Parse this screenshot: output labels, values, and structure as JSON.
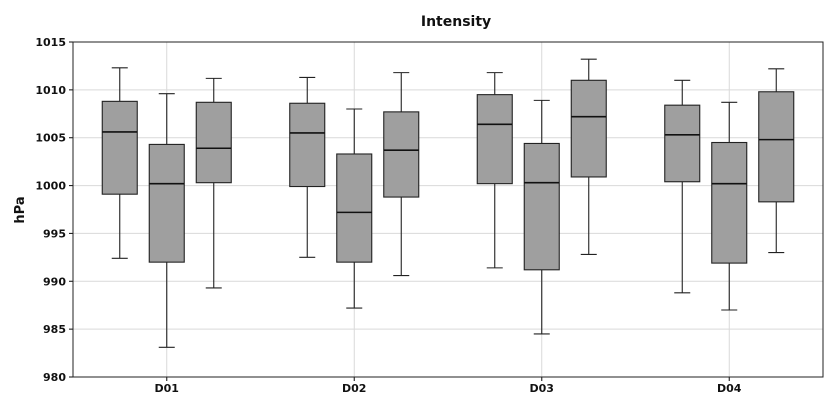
{
  "chart_data": {
    "type": "boxplot",
    "title": "Intensity",
    "ylabel": "hPa",
    "xlabel": "",
    "ylim": [
      980,
      1015
    ],
    "yticks": [
      980,
      985,
      990,
      995,
      1000,
      1005,
      1010,
      1015
    ],
    "categories": [
      "D01",
      "D02",
      "D03",
      "D04"
    ],
    "grid": true,
    "series": [
      {
        "values": [
          {
            "min": 992.4,
            "q1": 999.1,
            "median": 1005.6,
            "q3": 1008.8,
            "max": 1012.3
          },
          {
            "min": 992.5,
            "q1": 999.9,
            "median": 1005.5,
            "q3": 1008.6,
            "max": 1011.3
          },
          {
            "min": 991.4,
            "q1": 1000.2,
            "median": 1006.4,
            "q3": 1009.5,
            "max": 1011.8
          },
          {
            "min": 988.8,
            "q1": 1000.4,
            "median": 1005.3,
            "q3": 1008.4,
            "max": 1011.0
          }
        ]
      },
      {
        "values": [
          {
            "min": 983.1,
            "q1": 992.0,
            "median": 1000.2,
            "q3": 1004.3,
            "max": 1009.6
          },
          {
            "min": 987.2,
            "q1": 992.0,
            "median": 997.2,
            "q3": 1003.3,
            "max": 1008.0
          },
          {
            "min": 984.5,
            "q1": 991.2,
            "median": 1000.3,
            "q3": 1004.4,
            "max": 1008.9
          },
          {
            "min": 987.0,
            "q1": 991.9,
            "median": 1000.2,
            "q3": 1004.5,
            "max": 1008.7
          }
        ]
      },
      {
        "values": [
          {
            "min": 989.3,
            "q1": 1000.3,
            "median": 1003.9,
            "q3": 1008.7,
            "max": 1011.2
          },
          {
            "min": 990.6,
            "q1": 998.8,
            "median": 1003.7,
            "q3": 1007.7,
            "max": 1011.8
          },
          {
            "min": 992.8,
            "q1": 1000.9,
            "median": 1007.2,
            "q3": 1011.0,
            "max": 1013.2
          },
          {
            "min": 993.0,
            "q1": 998.3,
            "median": 1004.8,
            "q3": 1009.8,
            "max": 1012.2
          }
        ]
      }
    ]
  }
}
